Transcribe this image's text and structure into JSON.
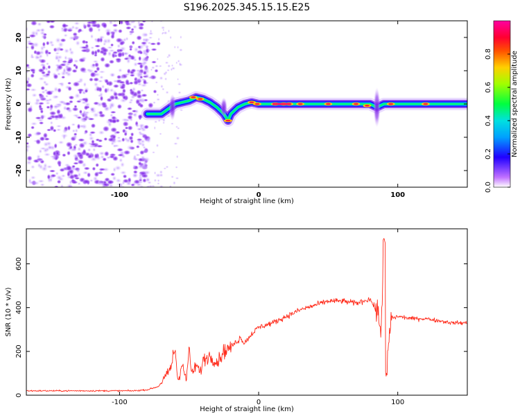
{
  "chart_data": [
    {
      "type": "heatmap",
      "title": "S196.2025.345.15.15.E25",
      "xlabel": "Height of straight line (km)",
      "ylabel": "Frequency (Hz)",
      "xlim": [
        -167,
        150
      ],
      "ylim": [
        -25,
        25
      ],
      "x_ticks": [
        -100,
        0,
        100
      ],
      "x_tick_labels": [
        "-100",
        "0",
        "100"
      ],
      "y_ticks": [
        -20,
        -10,
        0,
        10,
        20
      ],
      "y_tick_labels": [
        "-20",
        "-10",
        "0",
        "10",
        "20"
      ],
      "noise_region_x": [
        -167,
        -80
      ],
      "ridge": {
        "x": [
          -80,
          -75,
          -70,
          -60,
          -55,
          -50,
          -45,
          -40,
          -35,
          -30,
          -25,
          -22,
          -20,
          -15,
          -10,
          -5,
          0,
          10,
          20,
          40,
          60,
          80,
          85,
          90,
          100,
          120,
          150
        ],
        "frequency": [
          -3,
          -3,
          -3,
          0,
          0.5,
          1,
          2,
          1.5,
          0.5,
          -1,
          -3,
          -5,
          -3,
          -1,
          0,
          0.5,
          0,
          0,
          0,
          0,
          0,
          0,
          -1,
          0,
          0,
          0,
          0
        ]
      },
      "colorbar": {
        "label": "Normalized spectral amplitude",
        "range": [
          0,
          1
        ],
        "ticks": [
          0.0,
          0.2,
          0.4,
          0.6,
          0.8
        ],
        "tick_labels": [
          "0.0",
          "0.2",
          "0.4",
          "0.6",
          "0.8"
        ],
        "colors": [
          "#ffffff",
          "#a040ff",
          "#2000ff",
          "#00c0ff",
          "#00ff60",
          "#c0ff00",
          "#ffb000",
          "#ff2000",
          "#ff0090"
        ]
      }
    },
    {
      "type": "line",
      "xlabel": "Height of straight line (km)",
      "ylabel": "SNR (10 * v/v)",
      "xlim": [
        -167,
        150
      ],
      "ylim": [
        0,
        760
      ],
      "x_ticks": [
        -100,
        0,
        100
      ],
      "x_tick_labels": [
        "-100",
        "0",
        "100"
      ],
      "y_ticks": [
        0,
        200,
        400,
        600
      ],
      "y_tick_labels": [
        "0",
        "200",
        "400",
        "600"
      ],
      "line_color": "#ff2a1a",
      "series": [
        {
          "name": "SNR",
          "x": [
            -167,
            -140,
            -110,
            -90,
            -80,
            -72,
            -65,
            -62,
            -60,
            -58,
            -55,
            -52,
            -50,
            -48,
            -45,
            -42,
            -40,
            -35,
            -30,
            -25,
            -20,
            -15,
            -10,
            -5,
            0,
            10,
            20,
            30,
            40,
            50,
            60,
            70,
            80,
            85,
            88,
            90,
            92,
            95,
            100,
            110,
            120,
            130,
            140,
            150
          ],
          "values": [
            20,
            20,
            20,
            20,
            25,
            40,
            100,
            150,
            210,
            60,
            150,
            60,
            220,
            90,
            140,
            100,
            160,
            180,
            150,
            200,
            220,
            250,
            240,
            280,
            310,
            330,
            360,
            390,
            410,
            430,
            430,
            420,
            440,
            380,
            300,
            700,
            100,
            350,
            360,
            350,
            350,
            340,
            330,
            330
          ]
        }
      ]
    }
  ]
}
